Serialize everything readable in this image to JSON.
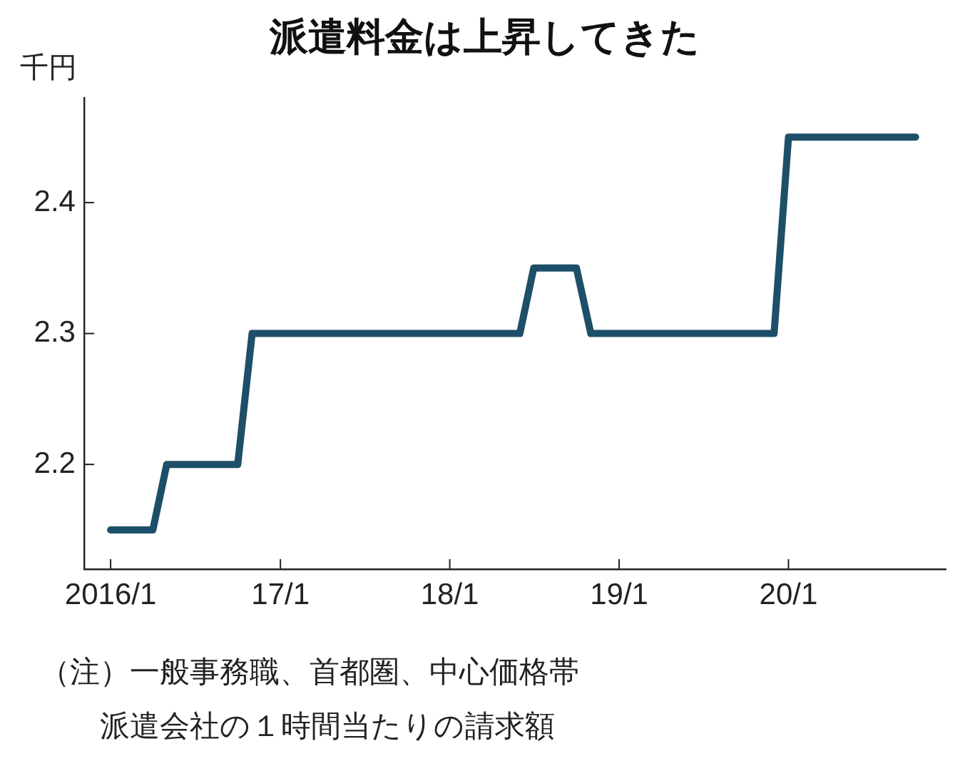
{
  "chart_data": {
    "type": "line",
    "title": "派遣料金は上昇してきた",
    "ylabel": "千円",
    "annotations": [
      "（注）一般事務職、首都圏、中心価格帯",
      "派遣会社の１時間当たりの請求額"
    ],
    "x": [
      "2016-01",
      "2016-04",
      "2016-05",
      "2016-10",
      "2016-11",
      "2018-06",
      "2018-07",
      "2018-10",
      "2018-11",
      "2019-12",
      "2020-01",
      "2020-10"
    ],
    "series": [
      {
        "color": "#1d4f68",
        "values": [
          2.15,
          2.15,
          2.2,
          2.2,
          2.3,
          2.3,
          2.35,
          2.35,
          2.3,
          2.3,
          2.45,
          2.45
        ]
      }
    ],
    "xlim": [
      "2015-11-05",
      "2020-12-05"
    ],
    "xticks": [
      {
        "value": "2016-01",
        "label": "2016/1"
      },
      {
        "value": "2017-01",
        "label": "17/1"
      },
      {
        "value": "2018-01",
        "label": "18/1"
      },
      {
        "value": "2019-01",
        "label": "19/1"
      },
      {
        "value": "2020-01",
        "label": "20/1"
      }
    ],
    "ylim": [
      2.12,
      2.48
    ],
    "yticks": [
      2.2,
      2.3,
      2.4
    ],
    "marker": "none",
    "line_style": "solid"
  }
}
